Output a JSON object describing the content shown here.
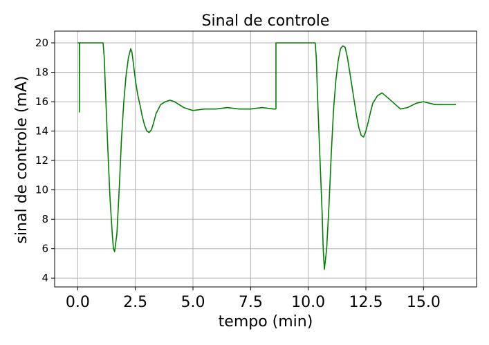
{
  "chart_data": {
    "type": "line",
    "title": "Sinal de controle",
    "xlabel": "tempo (min)",
    "ylabel": "sinal de controle (mA)",
    "xlim": [
      -1.0,
      17.3
    ],
    "ylim": [
      3.4,
      20.8
    ],
    "xticks": [
      0.0,
      2.5,
      5.0,
      7.5,
      10.0,
      12.5,
      15.0
    ],
    "xtick_labels": [
      "0.0",
      "2.5",
      "5.0",
      "7.5",
      "10.0",
      "12.5",
      "15.0"
    ],
    "yticks": [
      4,
      6,
      8,
      10,
      12,
      14,
      16,
      18,
      20
    ],
    "ytick_labels": [
      "4",
      "6",
      "8",
      "10",
      "12",
      "14",
      "16",
      "18",
      "20"
    ],
    "grid": true,
    "colors": {
      "line": "#008000",
      "grid": "#b0b0b0",
      "axes": "#000000"
    },
    "series": [
      {
        "name": "",
        "segments": [
          {
            "x": [
              0.0,
              0.05,
              0.07,
              0.07,
              0.08,
              0.1,
              0.3,
              0.6,
              0.9,
              1.1,
              1.15,
              1.2,
              1.3,
              1.4,
              1.5,
              1.55,
              1.6,
              1.7,
              1.8,
              1.9,
              2.0,
              2.1,
              2.2,
              2.3,
              2.35,
              2.4,
              2.5,
              2.6,
              2.7,
              2.8,
              2.9,
              3.0,
              3.1,
              3.2,
              3.3,
              3.4,
              3.6,
              3.8,
              4.0,
              4.2,
              4.4,
              4.6,
              4.8,
              5.0,
              5.5,
              6.0,
              6.5,
              7.0,
              7.5,
              8.0,
              8.5,
              8.6
            ],
            "y": [
              20.0,
              20.0,
              20.0,
              15.3,
              20.0,
              20.0,
              20.0,
              20.0,
              20.0,
              20.0,
              19.0,
              17.0,
              13.0,
              9.5,
              7.0,
              6.0,
              5.8,
              7.0,
              10.0,
              13.5,
              16.0,
              17.8,
              19.0,
              19.6,
              19.4,
              18.8,
              17.5,
              16.5,
              15.8,
              15.0,
              14.4,
              14.0,
              13.9,
              14.1,
              14.6,
              15.2,
              15.8,
              16.0,
              16.1,
              16.0,
              15.8,
              15.6,
              15.5,
              15.4,
              15.5,
              15.5,
              15.6,
              15.5,
              15.5,
              15.6,
              15.5,
              15.5
            ]
          },
          {
            "x": [
              8.6,
              8.6,
              9.0,
              9.5,
              10.0,
              10.3,
              10.35,
              10.4,
              10.5,
              10.6,
              10.65,
              10.7,
              10.8,
              10.9,
              11.0,
              11.1,
              11.2,
              11.3,
              11.4,
              11.5,
              11.6,
              11.7,
              11.8,
              11.9,
              12.0,
              12.1,
              12.2,
              12.3,
              12.4,
              12.5,
              12.6,
              12.7,
              12.8,
              13.0,
              13.2,
              13.5,
              14.0,
              14.3,
              14.7,
              15.0,
              15.5,
              16.0,
              16.4
            ],
            "y": [
              15.5,
              20.0,
              20.0,
              20.0,
              20.0,
              20.0,
              19.0,
              16.5,
              12.5,
              8.5,
              6.0,
              4.6,
              6.0,
              9.0,
              12.5,
              15.5,
              17.5,
              18.8,
              19.6,
              19.8,
              19.7,
              19.0,
              18.0,
              17.0,
              16.0,
              15.0,
              14.2,
              13.7,
              13.6,
              14.0,
              14.6,
              15.3,
              15.9,
              16.4,
              16.6,
              16.2,
              15.5,
              15.6,
              15.9,
              16.0,
              15.8,
              15.8,
              15.8
            ]
          }
        ]
      }
    ]
  }
}
